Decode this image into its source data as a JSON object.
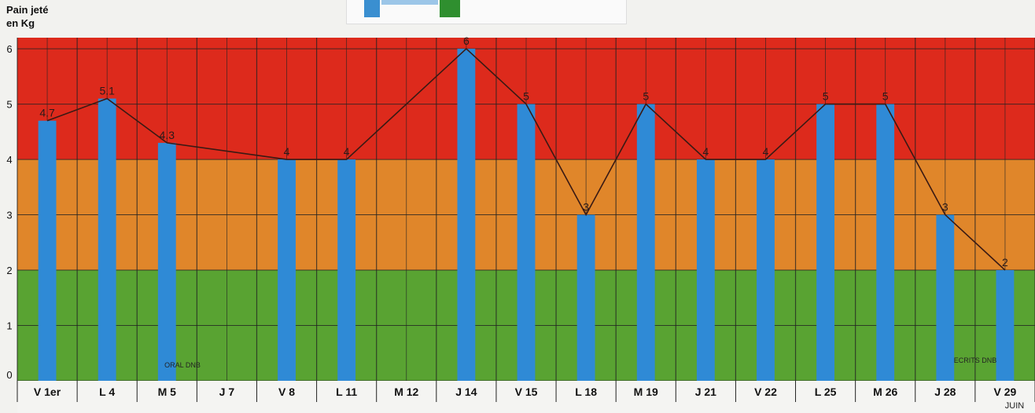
{
  "chart_data": {
    "type": "bar",
    "ylabel_line1": "Pain jeté",
    "ylabel_line2": "en Kg",
    "ylim": [
      0,
      6.2
    ],
    "yticks": [
      "0",
      "1",
      "2",
      "3",
      "4",
      "5",
      "6"
    ],
    "categories": [
      "V 1er",
      "L 4",
      "M 5",
      "J 7",
      "V 8",
      "L 11",
      "M 12",
      "J 14",
      "V 15",
      "L 18",
      "M 19",
      "J 21",
      "V 22",
      "L 25",
      "M 26",
      "J 28",
      "V 29"
    ],
    "values": [
      4.7,
      5.1,
      4.3,
      null,
      4,
      4,
      null,
      6,
      5,
      3,
      5,
      4,
      4,
      5,
      5,
      3,
      2
    ],
    "value_labels": [
      "4.7",
      "5.1",
      "4.3",
      "",
      "4",
      "4",
      "",
      "6",
      "5",
      "3",
      "5",
      "4",
      "4",
      "5",
      "5",
      "3",
      "2"
    ],
    "bands": [
      {
        "from": 0,
        "to": 2,
        "color": "#59a332"
      },
      {
        "from": 2,
        "to": 4,
        "color": "#e0862a"
      },
      {
        "from": 4,
        "to": 6.2,
        "color": "#dd2a1c"
      }
    ],
    "annotations": [
      "ORAL DNB",
      "ECRITS DNB",
      "JUIN"
    ],
    "bar_color": "#2f8ad6",
    "grid": true
  }
}
